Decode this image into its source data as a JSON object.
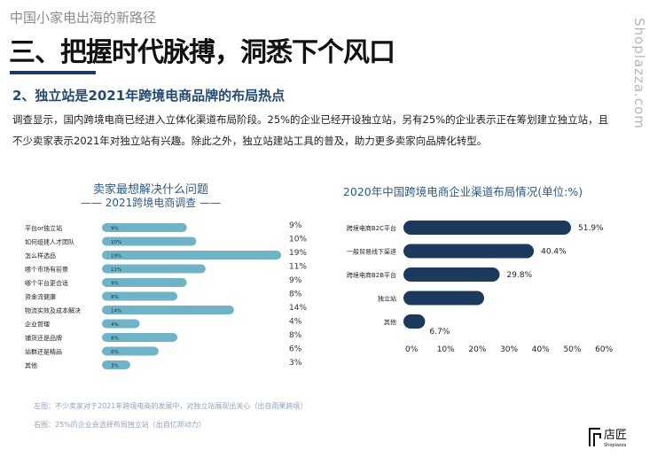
{
  "header": {
    "pretitle": "中国小家电出海的新路径",
    "title": "三、把握时代脉搏，洞悉下个风口",
    "subtitle": "2、独立站是2021年跨境电商品牌的布局热点",
    "body_line1": "调查显示，国内跨境电商已经进入立体化渠道布局阶段。25%的企业已经开设独立站，另有25%的企业表示正在筹划建立独立站，且",
    "body_line2": "不少卖家表示2021年对独立站有兴趣。除此之外，独立站建站工具的普及，助力更多卖家向品牌化转型。",
    "watermark": "Shoplazza.com"
  },
  "chart_data": [
    {
      "type": "bar",
      "orientation": "horizontal",
      "title": "卖家最想解决什么问题",
      "subtitle": "—— 2021跨境电商调查 ——",
      "categories": [
        "平台or独立站",
        "如何组建人才团队",
        "怎么样选品",
        "哪个市场有前景",
        "哪个平台更合适",
        "资金流健康",
        "物流实效及成本解决",
        "企业管理",
        "铺货还是品牌",
        "站群还是精品",
        "其他"
      ],
      "values": [
        9,
        10,
        19,
        11,
        9,
        8,
        14,
        4,
        8,
        6,
        3
      ],
      "bar_labels": [
        "9%",
        "10%",
        "19%",
        "11%",
        "9%",
        "8%",
        "14%",
        "4%",
        "8%",
        "6%",
        "3%"
      ],
      "right_labels": [
        "9%",
        "10%",
        "19%",
        "11%",
        "9%",
        "8%",
        "14%",
        "4%",
        "8%",
        "6%",
        "3%"
      ],
      "color": "#6fb3c6"
    },
    {
      "type": "bar",
      "orientation": "horizontal",
      "title": "2020年中国跨境电商企业渠道布局情况(单位:%)",
      "categories": [
        "跨境电商B2C平台",
        "一般贸易线下渠道",
        "跨境电商B2B平台",
        "独立站",
        "其他"
      ],
      "values": [
        51.9,
        40.4,
        29.8,
        25,
        6.7
      ],
      "value_labels": [
        "51.9%",
        "40.4%",
        "29.8%",
        "",
        "6.7%"
      ],
      "xlim": [
        0,
        60
      ],
      "xticks": [
        "0%",
        "10%",
        "20%",
        "30%",
        "40%",
        "50%",
        "60%"
      ],
      "color": "#1c3a5e"
    }
  ],
  "footer": {
    "note1": "左图：不少卖家对于2021年跨境电商的发展中，对独立站展现出关心（出自雨果跨境）",
    "note2": "右图：25%的企业会选择布局独立站（出自亿邦动力）",
    "logo_text": "店匠",
    "logo_sub": "Shoplazza"
  }
}
